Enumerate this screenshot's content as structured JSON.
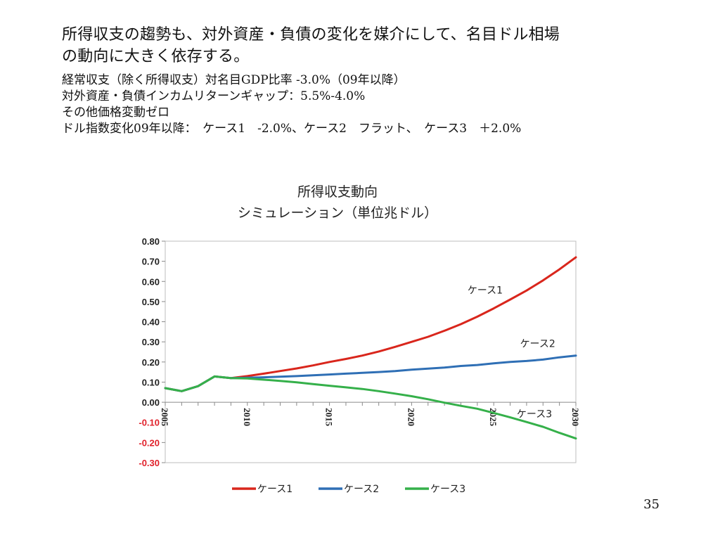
{
  "slide": {
    "heading_lines": [
      "所得収支の趨勢も、対外資産・負債の変化を媒介にして、名目ドル相場",
      "の動向に大きく依存する。"
    ],
    "assumptions": [
      "経常収支（除く所得収支）対名目GDP比率 -3.0%（09年以降）",
      "対外資産・負債インカムリターンギャップ：5.5%-4.0%",
      "その他価格変動ゼロ",
      "ドル指数変化09年以降：　ケース1　-2.0%、ケース2　フラット、　ケース3　＋2.0%"
    ],
    "page_number": "35"
  },
  "chart_data": {
    "type": "line",
    "title_lines": [
      "所得収支動向",
      "シミュレーション（単位兆ドル）"
    ],
    "xlabel": "",
    "ylabel": "",
    "x": [
      2005,
      2006,
      2007,
      2008,
      2009,
      2010,
      2011,
      2012,
      2013,
      2014,
      2015,
      2016,
      2017,
      2018,
      2019,
      2020,
      2021,
      2022,
      2023,
      2024,
      2025,
      2026,
      2027,
      2028,
      2029,
      2030
    ],
    "x_ticks": [
      "2005",
      "2010",
      "2015",
      "2020",
      "2025",
      "2030"
    ],
    "ylim": [
      -0.3,
      0.8
    ],
    "y_ticks": [
      "0.80",
      "0.70",
      "0.60",
      "0.50",
      "0.40",
      "0.30",
      "0.20",
      "0.10",
      "0.00",
      "-0.10",
      "-0.20",
      "-0.30"
    ],
    "negative_tick_color": "#e0202a",
    "grid": false,
    "legend_position": "bottom",
    "series": [
      {
        "name": "ケース1",
        "color": "#d9261c",
        "values": [
          0.07,
          0.055,
          0.08,
          0.128,
          0.12,
          0.13,
          0.142,
          0.155,
          0.168,
          0.183,
          0.2,
          0.215,
          0.232,
          0.252,
          0.275,
          0.3,
          0.325,
          0.355,
          0.388,
          0.425,
          0.466,
          0.51,
          0.555,
          0.605,
          0.66,
          0.72
        ],
        "annotation": "ケース1"
      },
      {
        "name": "ケース2",
        "color": "#2f6fb5",
        "values": [
          0.07,
          0.055,
          0.08,
          0.128,
          0.12,
          0.122,
          0.124,
          0.127,
          0.13,
          0.134,
          0.138,
          0.142,
          0.146,
          0.15,
          0.155,
          0.162,
          0.167,
          0.172,
          0.18,
          0.185,
          0.193,
          0.2,
          0.205,
          0.212,
          0.223,
          0.232
        ],
        "annotation": "ケース2"
      },
      {
        "name": "ケース3",
        "color": "#35b04a",
        "values": [
          0.07,
          0.055,
          0.08,
          0.128,
          0.12,
          0.118,
          0.112,
          0.106,
          0.099,
          0.09,
          0.082,
          0.074,
          0.066,
          0.055,
          0.043,
          0.03,
          0.015,
          -0.002,
          -0.018,
          -0.032,
          -0.053,
          -0.075,
          -0.098,
          -0.122,
          -0.152,
          -0.18
        ],
        "annotation": "ケース3"
      }
    ]
  }
}
